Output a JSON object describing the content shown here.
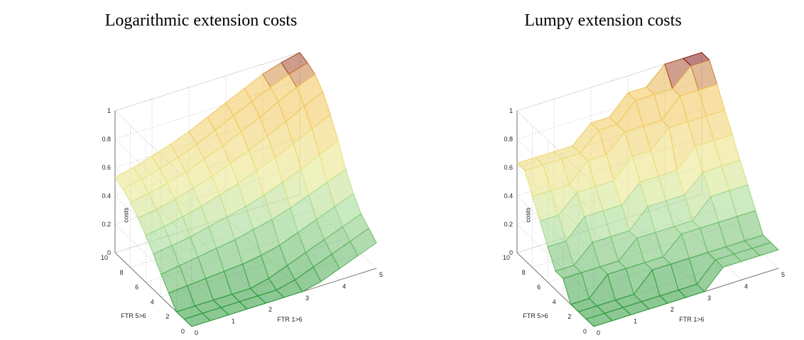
{
  "colors": {
    "low": "#2e9a3c",
    "mid_low": "#9ed88e",
    "mid": "#e9e88a",
    "mid_high": "#f2c75a",
    "high": "#8a1c1c",
    "grid": "#c8c8c8",
    "axis": "#555555"
  },
  "chart_data": [
    {
      "type": "surface",
      "title": "Logarithmic extension costs",
      "xlabel": "FTR 1>6",
      "ylabel": "FTR 5>6",
      "zlabel": "costs",
      "xlim": [
        0,
        5
      ],
      "ylim": [
        0,
        10
      ],
      "zlim": [
        0,
        1
      ],
      "xticks": [
        "0",
        "1",
        "2",
        "3",
        "4",
        "5"
      ],
      "yticks": [
        "0",
        "2",
        "4",
        "6",
        "8",
        "10"
      ],
      "zticks": [
        "0",
        "0.2",
        "0.4",
        "0.6",
        "0.8",
        "1"
      ],
      "grid": true,
      "x": [
        0,
        0.5,
        1,
        1.5,
        2,
        2.5,
        3,
        3.5,
        4,
        4.5,
        5
      ],
      "y": [
        0,
        1,
        2,
        3,
        4,
        5,
        6,
        7,
        8,
        9,
        10
      ],
      "z": [
        [
          0.0,
          0.0,
          0.0,
          0.0,
          0.0,
          0.0,
          0.0,
          0.03,
          0.08,
          0.13,
          0.18
        ],
        [
          0.0,
          0.0,
          0.0,
          0.0,
          0.0,
          0.0,
          0.03,
          0.08,
          0.13,
          0.18,
          0.23
        ],
        [
          0.0,
          0.0,
          0.0,
          0.0,
          0.0,
          0.03,
          0.08,
          0.13,
          0.18,
          0.23,
          0.28
        ],
        [
          0.08,
          0.09,
          0.1,
          0.11,
          0.12,
          0.14,
          0.17,
          0.22,
          0.27,
          0.32,
          0.37
        ],
        [
          0.16,
          0.18,
          0.2,
          0.22,
          0.24,
          0.27,
          0.3,
          0.34,
          0.39,
          0.44,
          0.49
        ],
        [
          0.25,
          0.27,
          0.29,
          0.32,
          0.35,
          0.38,
          0.42,
          0.47,
          0.52,
          0.58,
          0.64
        ],
        [
          0.33,
          0.35,
          0.38,
          0.41,
          0.45,
          0.49,
          0.54,
          0.59,
          0.65,
          0.71,
          0.77
        ],
        [
          0.4,
          0.42,
          0.45,
          0.49,
          0.53,
          0.58,
          0.63,
          0.69,
          0.75,
          0.82,
          0.88
        ],
        [
          0.46,
          0.48,
          0.51,
          0.55,
          0.6,
          0.65,
          0.71,
          0.77,
          0.84,
          0.9,
          0.95
        ],
        [
          0.5,
          0.53,
          0.56,
          0.6,
          0.65,
          0.71,
          0.77,
          0.83,
          0.89,
          0.94,
          0.98
        ],
        [
          0.53,
          0.56,
          0.6,
          0.64,
          0.69,
          0.75,
          0.81,
          0.87,
          0.93,
          0.97,
          1.0
        ]
      ]
    },
    {
      "type": "surface",
      "title": "Lumpy extension costs",
      "xlabel": "FTR 1>6",
      "ylabel": "FTR 5>6",
      "zlabel": "costs",
      "xlim": [
        0,
        5
      ],
      "ylim": [
        0,
        10
      ],
      "zlim": [
        0,
        1
      ],
      "xticks": [
        "0",
        "1",
        "2",
        "3",
        "4",
        "5"
      ],
      "yticks": [
        "0",
        "2",
        "4",
        "6",
        "8",
        "10"
      ],
      "zticks": [
        "0",
        "0.2",
        "0.4",
        "0.6",
        "0.8",
        "1"
      ],
      "grid": true,
      "x": [
        0,
        0.5,
        1,
        1.5,
        2,
        2.5,
        3,
        3.5,
        4,
        4.5,
        5
      ],
      "y": [
        0,
        1,
        2,
        3,
        4,
        5,
        6,
        7,
        8,
        9,
        10
      ],
      "z": [
        [
          0.0,
          0.0,
          0.0,
          0.0,
          0.0,
          0.0,
          0.0,
          0.13,
          0.13,
          0.13,
          0.13
        ],
        [
          0.0,
          0.0,
          0.0,
          0.0,
          0.0,
          0.0,
          0.0,
          0.13,
          0.13,
          0.13,
          0.13
        ],
        [
          0.0,
          0.0,
          0.0,
          0.0,
          0.13,
          0.13,
          0.13,
          0.13,
          0.13,
          0.13,
          0.13
        ],
        [
          0.0,
          0.0,
          0.13,
          0.13,
          0.13,
          0.13,
          0.25,
          0.25,
          0.25,
          0.25,
          0.25
        ],
        [
          0.13,
          0.13,
          0.13,
          0.13,
          0.25,
          0.25,
          0.25,
          0.25,
          0.38,
          0.38,
          0.38
        ],
        [
          0.13,
          0.13,
          0.25,
          0.25,
          0.25,
          0.38,
          0.38,
          0.38,
          0.5,
          0.5,
          0.5
        ],
        [
          0.25,
          0.25,
          0.38,
          0.38,
          0.38,
          0.5,
          0.5,
          0.5,
          0.63,
          0.63,
          0.63
        ],
        [
          0.38,
          0.38,
          0.5,
          0.5,
          0.5,
          0.63,
          0.63,
          0.75,
          0.75,
          0.75,
          0.75
        ],
        [
          0.5,
          0.5,
          0.5,
          0.63,
          0.63,
          0.75,
          0.75,
          0.75,
          0.88,
          0.88,
          0.88
        ],
        [
          0.63,
          0.63,
          0.63,
          0.63,
          0.75,
          0.75,
          0.88,
          0.88,
          0.88,
          1.0,
          1.0
        ],
        [
          0.63,
          0.63,
          0.63,
          0.63,
          0.75,
          0.75,
          0.88,
          0.88,
          1.0,
          1.0,
          1.0
        ]
      ]
    }
  ]
}
